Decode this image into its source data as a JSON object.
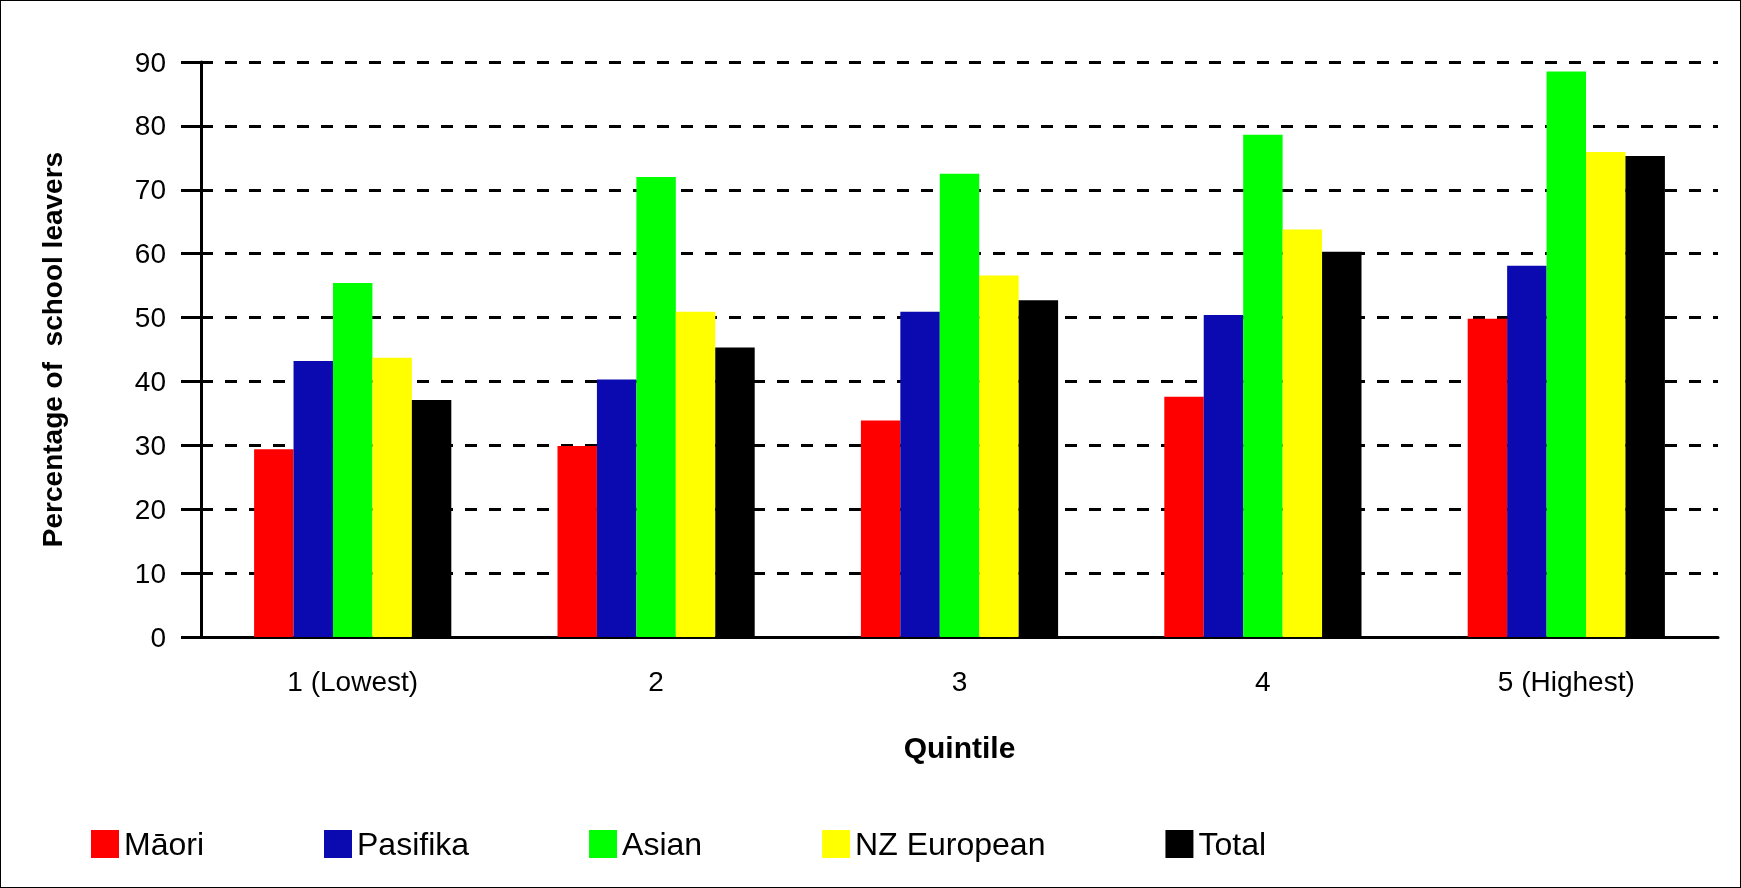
{
  "chart_data": {
    "type": "bar",
    "xlabel": "Quintile",
    "ylabel": "Percentage of  school leavers",
    "categories": [
      "1 (Lowest)",
      "2",
      "3",
      "4",
      "5 (Highest)"
    ],
    "series": [
      {
        "name": "Māori",
        "color": "#ff0000",
        "values": [
          29.4,
          29.9,
          33.9,
          37.6,
          49.8
        ]
      },
      {
        "name": "Pasifika",
        "color": "#0a0ab0",
        "values": [
          43.2,
          40.3,
          50.9,
          50.4,
          58.1
        ]
      },
      {
        "name": "Asian",
        "color": "#00ff00",
        "values": [
          55.4,
          72.0,
          72.5,
          78.6,
          88.5
        ]
      },
      {
        "name": "NZ European",
        "color": "#ffff00",
        "values": [
          43.7,
          50.9,
          56.6,
          63.8,
          75.9
        ]
      },
      {
        "name": "Total",
        "color": "#000000",
        "values": [
          37.1,
          45.3,
          52.7,
          60.3,
          75.3
        ]
      }
    ],
    "ylim": [
      0,
      90
    ],
    "yticks": [
      0,
      10,
      20,
      30,
      40,
      50,
      60,
      70,
      80,
      90
    ],
    "grid": "y",
    "legend": "bottom"
  }
}
